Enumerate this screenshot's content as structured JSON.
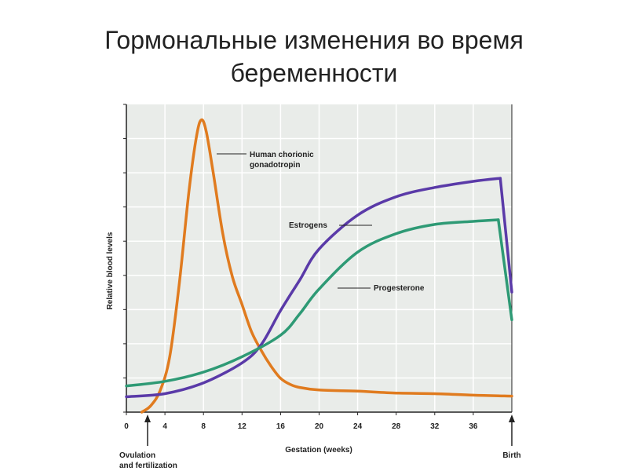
{
  "title_line1": "Гормональные изменения во время",
  "title_line2": "беременности",
  "chart_data": {
    "type": "line",
    "xlabel": "Gestation (weeks)",
    "ylabel": "Relative blood levels",
    "xlim": [
      0,
      40
    ],
    "ylim": [
      0,
      10
    ],
    "x_ticks": [
      "0",
      "4",
      "8",
      "12",
      "16",
      "20",
      "24",
      "28",
      "32",
      "36"
    ],
    "grid": true,
    "series": [
      {
        "name": "Human chorionic gonadotropin",
        "color": "#e07b1f",
        "points": [
          [
            1.6,
            0.0
          ],
          [
            2.5,
            0.2
          ],
          [
            3.5,
            0.7
          ],
          [
            4.5,
            1.8
          ],
          [
            5.5,
            4.2
          ],
          [
            6.5,
            7.2
          ],
          [
            7.3,
            9.0
          ],
          [
            7.8,
            9.5
          ],
          [
            8.3,
            9.1
          ],
          [
            9.0,
            7.8
          ],
          [
            10,
            5.8
          ],
          [
            11,
            4.4
          ],
          [
            12,
            3.5
          ],
          [
            13,
            2.6
          ],
          [
            14,
            2.0
          ],
          [
            15,
            1.5
          ],
          [
            16,
            1.1
          ],
          [
            17,
            0.9
          ],
          [
            18,
            0.8
          ],
          [
            20,
            0.72
          ],
          [
            24,
            0.68
          ],
          [
            28,
            0.62
          ],
          [
            32,
            0.6
          ],
          [
            36,
            0.55
          ],
          [
            40,
            0.52
          ]
        ]
      },
      {
        "name": "Estrogens",
        "color": "#5a3aa8",
        "points": [
          [
            0,
            0.5
          ],
          [
            4,
            0.6
          ],
          [
            8,
            0.95
          ],
          [
            12,
            1.6
          ],
          [
            14,
            2.2
          ],
          [
            16,
            3.3
          ],
          [
            18,
            4.3
          ],
          [
            20,
            5.3
          ],
          [
            24,
            6.4
          ],
          [
            28,
            7.0
          ],
          [
            32,
            7.3
          ],
          [
            36,
            7.5
          ],
          [
            38.8,
            7.6
          ],
          [
            40,
            3.9
          ]
        ]
      },
      {
        "name": "Progesterone",
        "color": "#2e9a75",
        "points": [
          [
            0,
            0.85
          ],
          [
            4,
            1.0
          ],
          [
            8,
            1.3
          ],
          [
            12,
            1.8
          ],
          [
            16,
            2.5
          ],
          [
            18,
            3.2
          ],
          [
            20,
            4.0
          ],
          [
            24,
            5.2
          ],
          [
            28,
            5.8
          ],
          [
            32,
            6.1
          ],
          [
            36,
            6.2
          ],
          [
            38.6,
            6.25
          ],
          [
            40,
            3.0
          ]
        ]
      }
    ],
    "annotations": {
      "ovulation": "Ovulation\nand fertilization",
      "birth": "Birth"
    }
  }
}
